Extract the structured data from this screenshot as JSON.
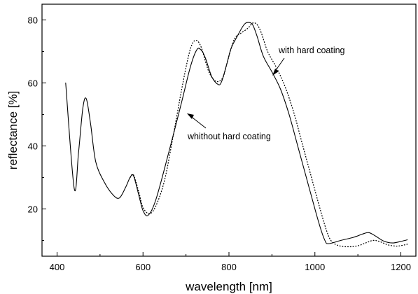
{
  "chart_data": {
    "type": "line",
    "title": "",
    "xlabel": "wavelength [nm]",
    "ylabel": "reflectance [%]",
    "xlim": [
      365,
      1235
    ],
    "ylim": [
      5,
      85
    ],
    "xticks": [
      400,
      600,
      800,
      1000,
      1200
    ],
    "yticks": [
      20,
      40,
      60,
      80
    ],
    "grid": false,
    "series": [
      {
        "name": "whithout hard coating",
        "style": "solid",
        "color": "#000000",
        "x": [
          420,
          440,
          450,
          460,
          468,
          478,
          490,
          510,
          530,
          545,
          560,
          570,
          578,
          590,
          600,
          612,
          630,
          660,
          690,
          710,
          725,
          735,
          745,
          760,
          775,
          783,
          795,
          805,
          820,
          835,
          845,
          855,
          865,
          880,
          900,
          920,
          940,
          960,
          980,
          1000,
          1015,
          1025,
          1030,
          1040,
          1060,
          1090,
          1110,
          1125,
          1140,
          1160,
          1180,
          1200,
          1215
        ],
        "y": [
          60,
          26.5,
          38,
          52,
          55,
          47,
          35,
          28.5,
          24.5,
          23.5,
          27,
          30,
          30.5,
          24.5,
          19.5,
          18,
          23,
          38,
          54,
          65,
          70.5,
          70.5,
          68,
          62,
          59.5,
          60.5,
          66,
          71,
          75,
          78.5,
          79.2,
          78.5,
          75,
          68.5,
          63.5,
          58,
          50,
          40,
          30,
          20,
          13,
          9.5,
          9,
          9.2,
          10,
          11,
          12,
          12.5,
          11.5,
          9.8,
          9.2,
          9.7,
          10.2
        ]
      },
      {
        "name": "with hard coating",
        "style": "dotted",
        "color": "#000000",
        "x": [
          570,
          578,
          590,
          600,
          615,
          630,
          650,
          670,
          690,
          705,
          715,
          725,
          735,
          745,
          755,
          770,
          785,
          795,
          805,
          815,
          830,
          845,
          855,
          865,
          875,
          890,
          910,
          930,
          950,
          970,
          990,
          1010,
          1025,
          1035,
          1045,
          1060,
          1080,
          1100,
          1120,
          1135,
          1150,
          1170,
          1190,
          1205,
          1215
        ],
        "y": [
          30,
          30.8,
          25.5,
          20.5,
          18.5,
          21,
          29,
          43,
          58,
          68,
          72.5,
          73.5,
          71.5,
          67,
          63,
          60.5,
          61.5,
          66,
          71,
          74.5,
          76,
          77.5,
          79,
          78.6,
          76,
          70,
          65,
          59,
          51,
          41,
          31,
          21,
          14,
          10.5,
          9,
          8.2,
          8,
          8.3,
          9.3,
          10,
          9.7,
          8.6,
          8.2,
          8.5,
          8.8
        ]
      }
    ],
    "annotations": [
      {
        "text": "with hard coating",
        "x": 1058,
        "y": 73
      },
      {
        "text": "whithout hard coating",
        "x": 845,
        "y": 41.5
      }
    ]
  }
}
